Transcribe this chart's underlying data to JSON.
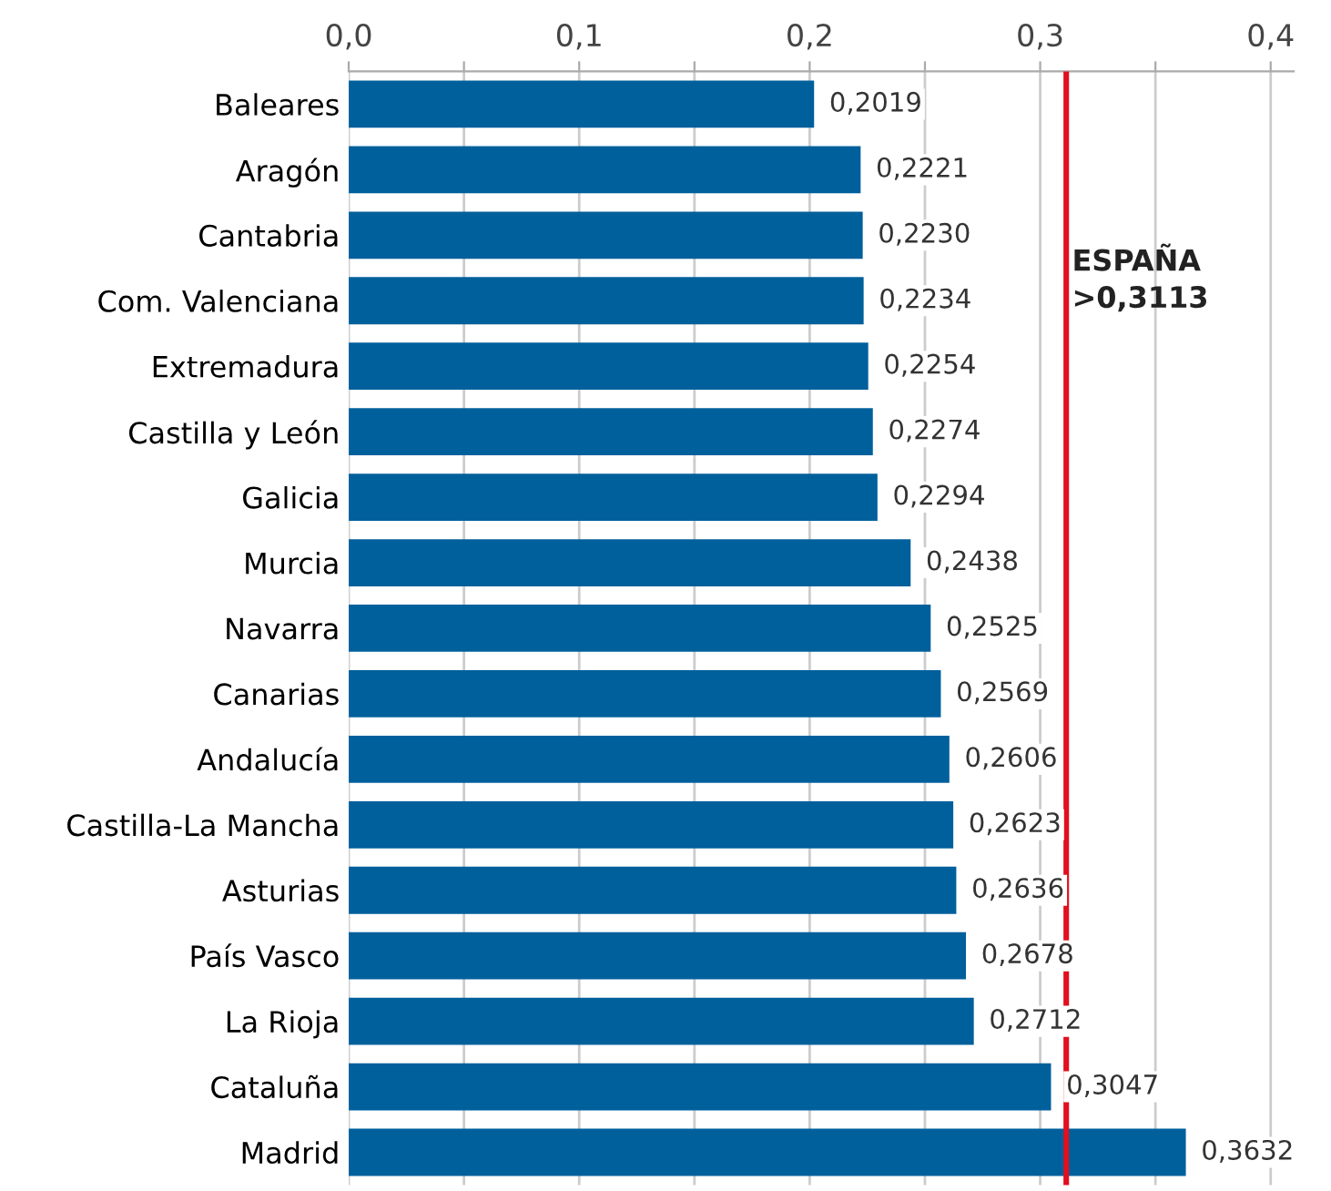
{
  "chart_data": {
    "type": "bar",
    "orientation": "horizontal",
    "categories": [
      "Baleares",
      "Aragón",
      "Cantabria",
      "Com. Valenciana",
      "Extremadura",
      "Castilla y León",
      "Galicia",
      "Murcia",
      "Navarra",
      "Canarias",
      "Andalucía",
      "Castilla-La Mancha",
      "Asturias",
      "País Vasco",
      "La Rioja",
      "Cataluña",
      "Madrid"
    ],
    "values": [
      0.2019,
      0.2221,
      0.223,
      0.2234,
      0.2254,
      0.2274,
      0.2294,
      0.2438,
      0.2525,
      0.2569,
      0.2606,
      0.2623,
      0.2636,
      0.2678,
      0.2712,
      0.3047,
      0.3632
    ],
    "value_labels": [
      "0,2019",
      "0,2221",
      "0,2230",
      "0,2234",
      "0,2254",
      "0,2274",
      "0,2294",
      "0,2438",
      "0,2525",
      "0,2569",
      "0,2606",
      "0,2623",
      "0,2636",
      "0,2678",
      "0,2712",
      "0,3047",
      "0,3632"
    ],
    "color": "#00609c",
    "xlim": [
      0,
      0.41
    ],
    "xticks": [
      {
        "value": 0,
        "label": "0,0"
      },
      {
        "value": 0.05,
        "label": null
      },
      {
        "value": 0.1,
        "label": "0,1"
      },
      {
        "value": 0.15,
        "label": null
      },
      {
        "value": 0.2,
        "label": "0,2"
      },
      {
        "value": 0.25,
        "label": null
      },
      {
        "value": 0.3,
        "label": "0,3"
      },
      {
        "value": 0.35,
        "label": null
      },
      {
        "value": 0.4,
        "label": "0,4"
      }
    ],
    "grid": "x",
    "ref_lines": [
      {
        "axis": "x",
        "value": 0.3113,
        "label": "ESPAÑA\n>0,3113",
        "color": "#e0101e"
      }
    ]
  }
}
